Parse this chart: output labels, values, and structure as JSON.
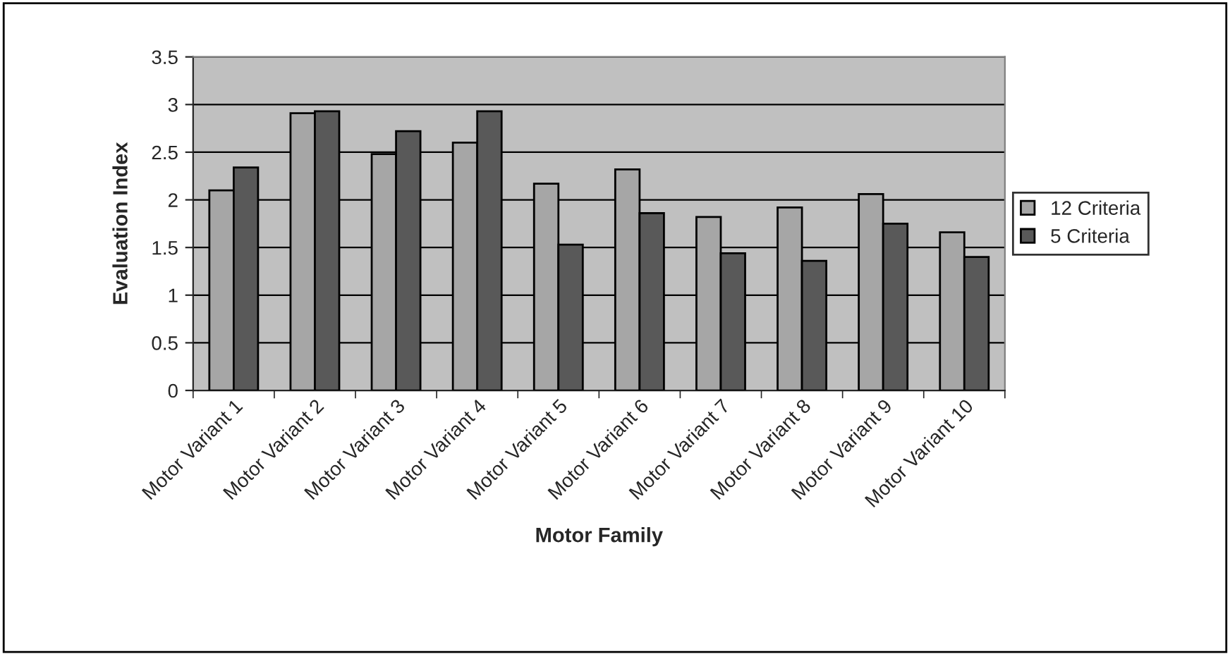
{
  "chart_data": {
    "type": "bar",
    "xlabel": "Motor Family",
    "ylabel": "Evaluation Index",
    "categories": [
      "Motor Variant 1",
      "Motor Variant 2",
      "Motor Variant 3",
      "Motor Variant 4",
      "Motor Variant 5",
      "Motor Variant 6",
      "Motor Variant 7",
      "Motor Variant 8",
      "Motor Variant 9",
      "Motor Variant 10"
    ],
    "series": [
      {
        "name": "12 Criteria",
        "color": "#a6a6a6",
        "values": [
          2.1,
          2.91,
          2.48,
          2.6,
          2.17,
          2.32,
          1.82,
          1.92,
          2.06,
          1.66
        ]
      },
      {
        "name": "5 Criteria",
        "color": "#595959",
        "values": [
          2.34,
          2.93,
          2.72,
          2.93,
          1.53,
          1.86,
          1.44,
          1.36,
          1.75,
          1.4
        ]
      }
    ],
    "ylim": [
      0,
      3.5
    ],
    "yticks": [
      0,
      0.5,
      1,
      1.5,
      2,
      2.5,
      3,
      3.5
    ],
    "grid": "y",
    "legend": "right"
  }
}
